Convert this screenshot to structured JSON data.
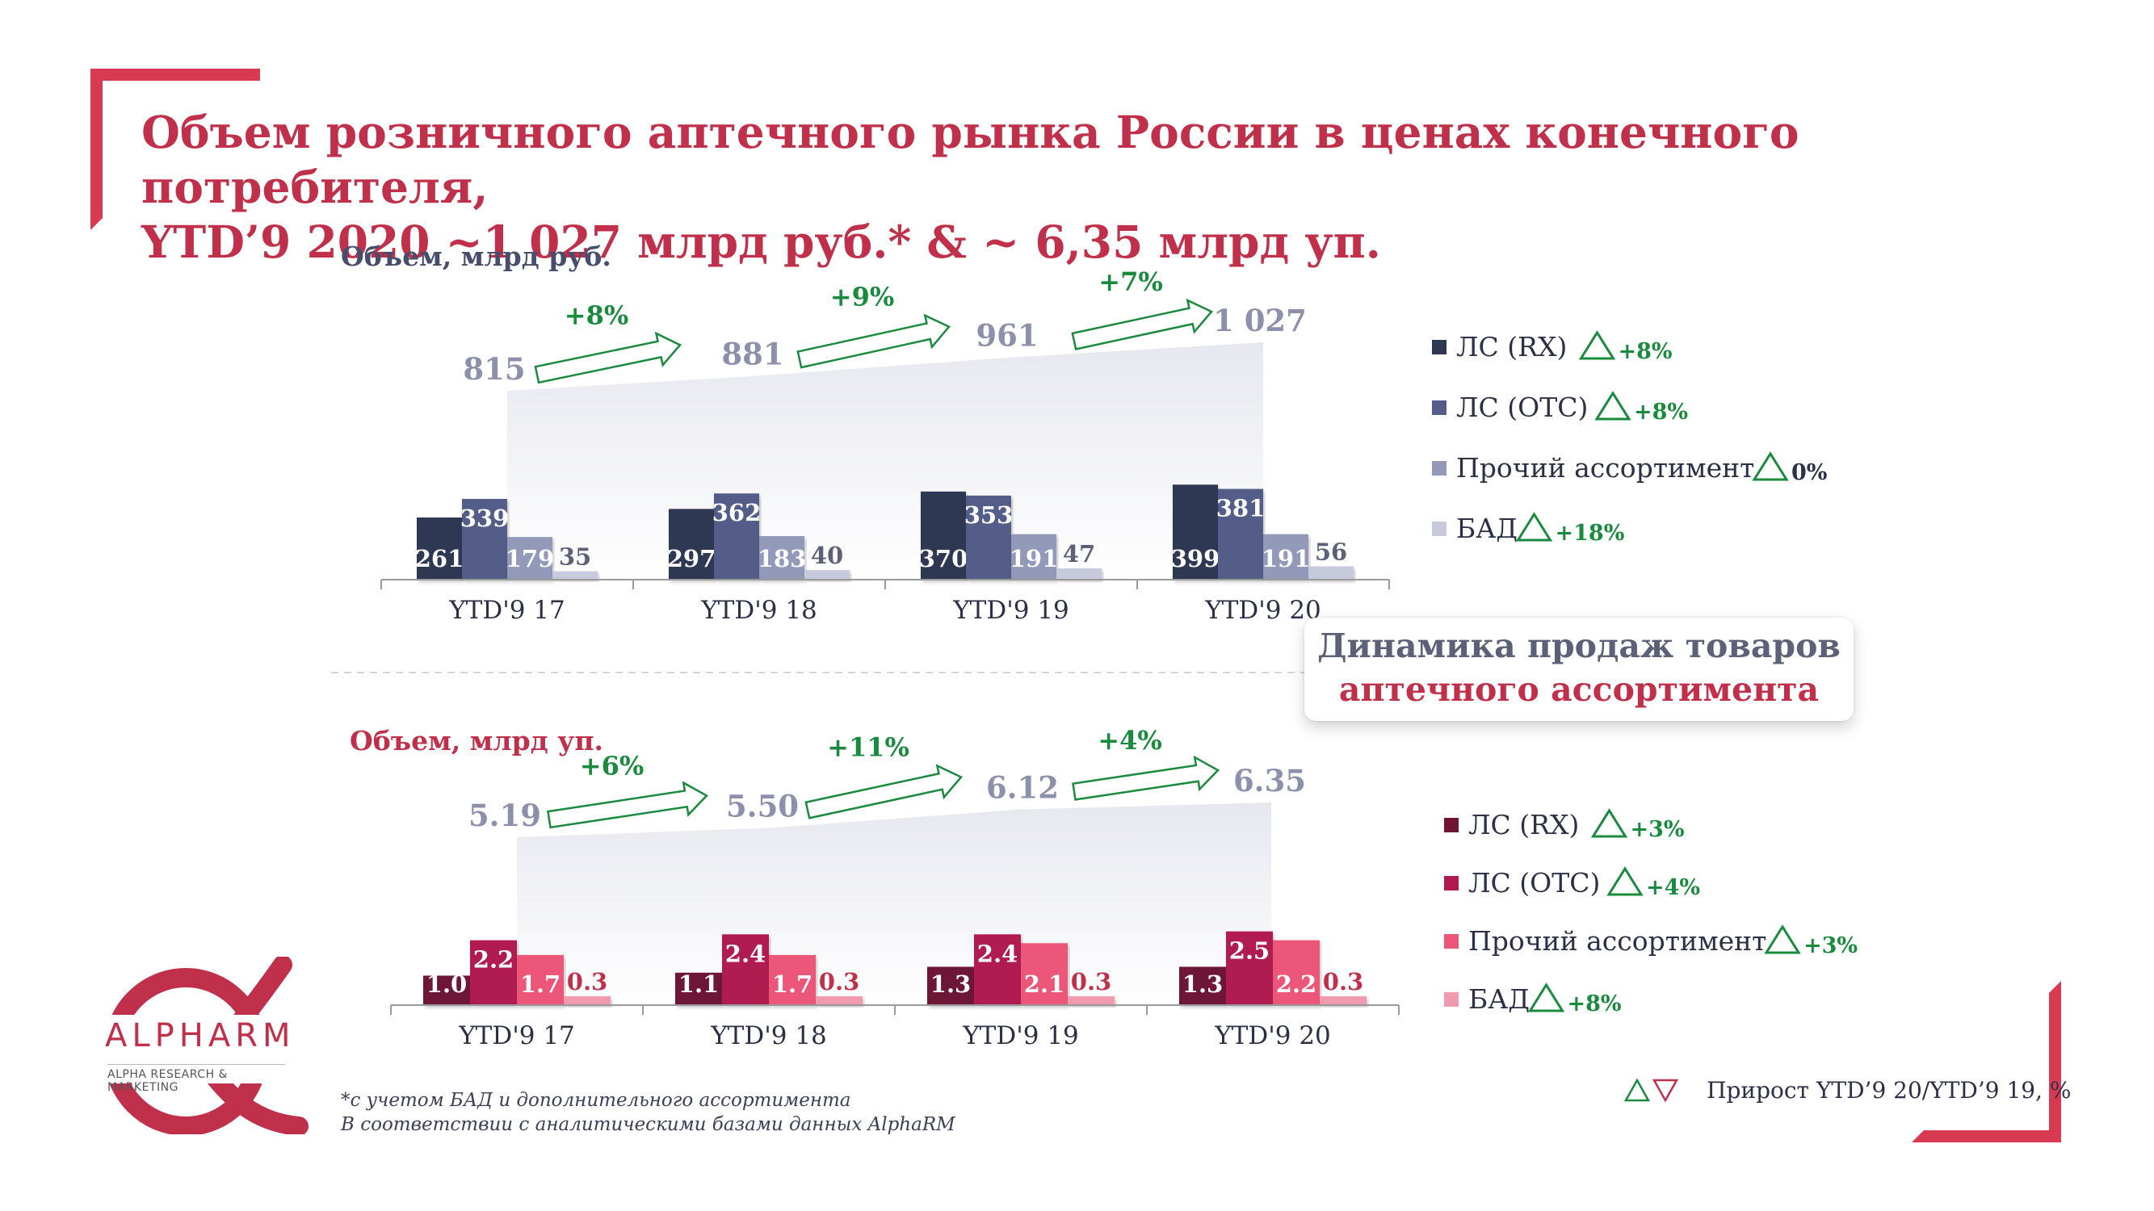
{
  "title": {
    "line1": "Объем розничного аптечного рынка России в ценах конечного потребителя,",
    "line2": "YTD’9 2020 ~1 027 млрд руб.* & ~ 6,35 млрд уп."
  },
  "callout": {
    "line1": "Динамика продаж товаров",
    "line2": "аптечного ассортимента"
  },
  "footnote": {
    "line1": "*с учетом БАД и дополнительного ассортимента",
    "line2": "В соответствии с аналитическими базами данных AlphaRM"
  },
  "growth_note": "Прирост YTD’9 20/YTD’9 19, %",
  "logo": {
    "brand": "ALPHARM",
    "tagline": "ALPHA RESEARCH & MARKETING"
  },
  "colors": {
    "title": "#c0304a",
    "growth": "#1a8a3e",
    "total_label": "#8c90aa",
    "rub_series": [
      "#2f3752",
      "#535d87",
      "#9299b9",
      "#c7cadc"
    ],
    "units_series": [
      "#6e1535",
      "#b01a4f",
      "#ec5679",
      "#f19bb0"
    ]
  },
  "chart_data": [
    {
      "type": "bar",
      "title": "Объем, млрд руб.",
      "categories": [
        "YTD'9 17",
        "YTD'9 18",
        "YTD'9 19",
        "YTD'9 20"
      ],
      "series": [
        {
          "name": "ЛС (RX)",
          "values": [
            261,
            297,
            370,
            399
          ],
          "labels": [
            "261",
            "297",
            "370",
            "399"
          ],
          "growth": "+8%"
        },
        {
          "name": "ЛС (OTC)",
          "values": [
            339,
            362,
            353,
            381
          ],
          "labels": [
            "339",
            "362",
            "353",
            "381"
          ],
          "growth": "+8%"
        },
        {
          "name": "Прочий ассортимент",
          "values": [
            179,
            183,
            191,
            191
          ],
          "labels": [
            "179",
            "183",
            "191",
            "191"
          ],
          "growth": "0%"
        },
        {
          "name": "БАД",
          "values": [
            35,
            40,
            47,
            56
          ],
          "labels": [
            "35",
            "40",
            "47",
            "56"
          ],
          "growth": "+18%"
        }
      ],
      "totals": [
        "815",
        "881",
        "961",
        "1 027"
      ],
      "totals_values": [
        815,
        881,
        961,
        1027
      ],
      "growth_between": [
        "+8%",
        "+9%",
        "+7%"
      ],
      "ylim": [
        0,
        400
      ]
    },
    {
      "type": "bar",
      "title": "Объем, млрд уп.",
      "categories": [
        "YTD'9 17",
        "YTD'9 18",
        "YTD'9 19",
        "YTD'9 20"
      ],
      "series": [
        {
          "name": "ЛС (RX)",
          "values": [
            1.0,
            1.1,
            1.3,
            1.3
          ],
          "labels": [
            "1.0",
            "1.1",
            "1.3",
            "1.3"
          ],
          "growth": "+3%"
        },
        {
          "name": "ЛС (OTC)",
          "values": [
            2.2,
            2.4,
            2.4,
            2.5
          ],
          "labels": [
            "2.2",
            "2.4",
            "2.4",
            "2.5"
          ],
          "growth": "+4%"
        },
        {
          "name": "Прочий ассортимент",
          "values": [
            1.7,
            1.7,
            2.1,
            2.2
          ],
          "labels": [
            "1.7",
            "1.7",
            "2.1",
            "2.2"
          ],
          "growth": "+3%"
        },
        {
          "name": "БАД",
          "values": [
            0.3,
            0.3,
            0.3,
            0.3
          ],
          "labels": [
            "0.3",
            "0.3",
            "0.3",
            "0.3"
          ],
          "growth": "+8%"
        }
      ],
      "totals": [
        "5.19",
        "5.50",
        "6.12",
        "6.35"
      ],
      "totals_values": [
        5.19,
        5.5,
        6.12,
        6.35
      ],
      "growth_between": [
        "+6%",
        "+11%",
        "+4%"
      ],
      "ylim": [
        0,
        2.6
      ]
    }
  ]
}
